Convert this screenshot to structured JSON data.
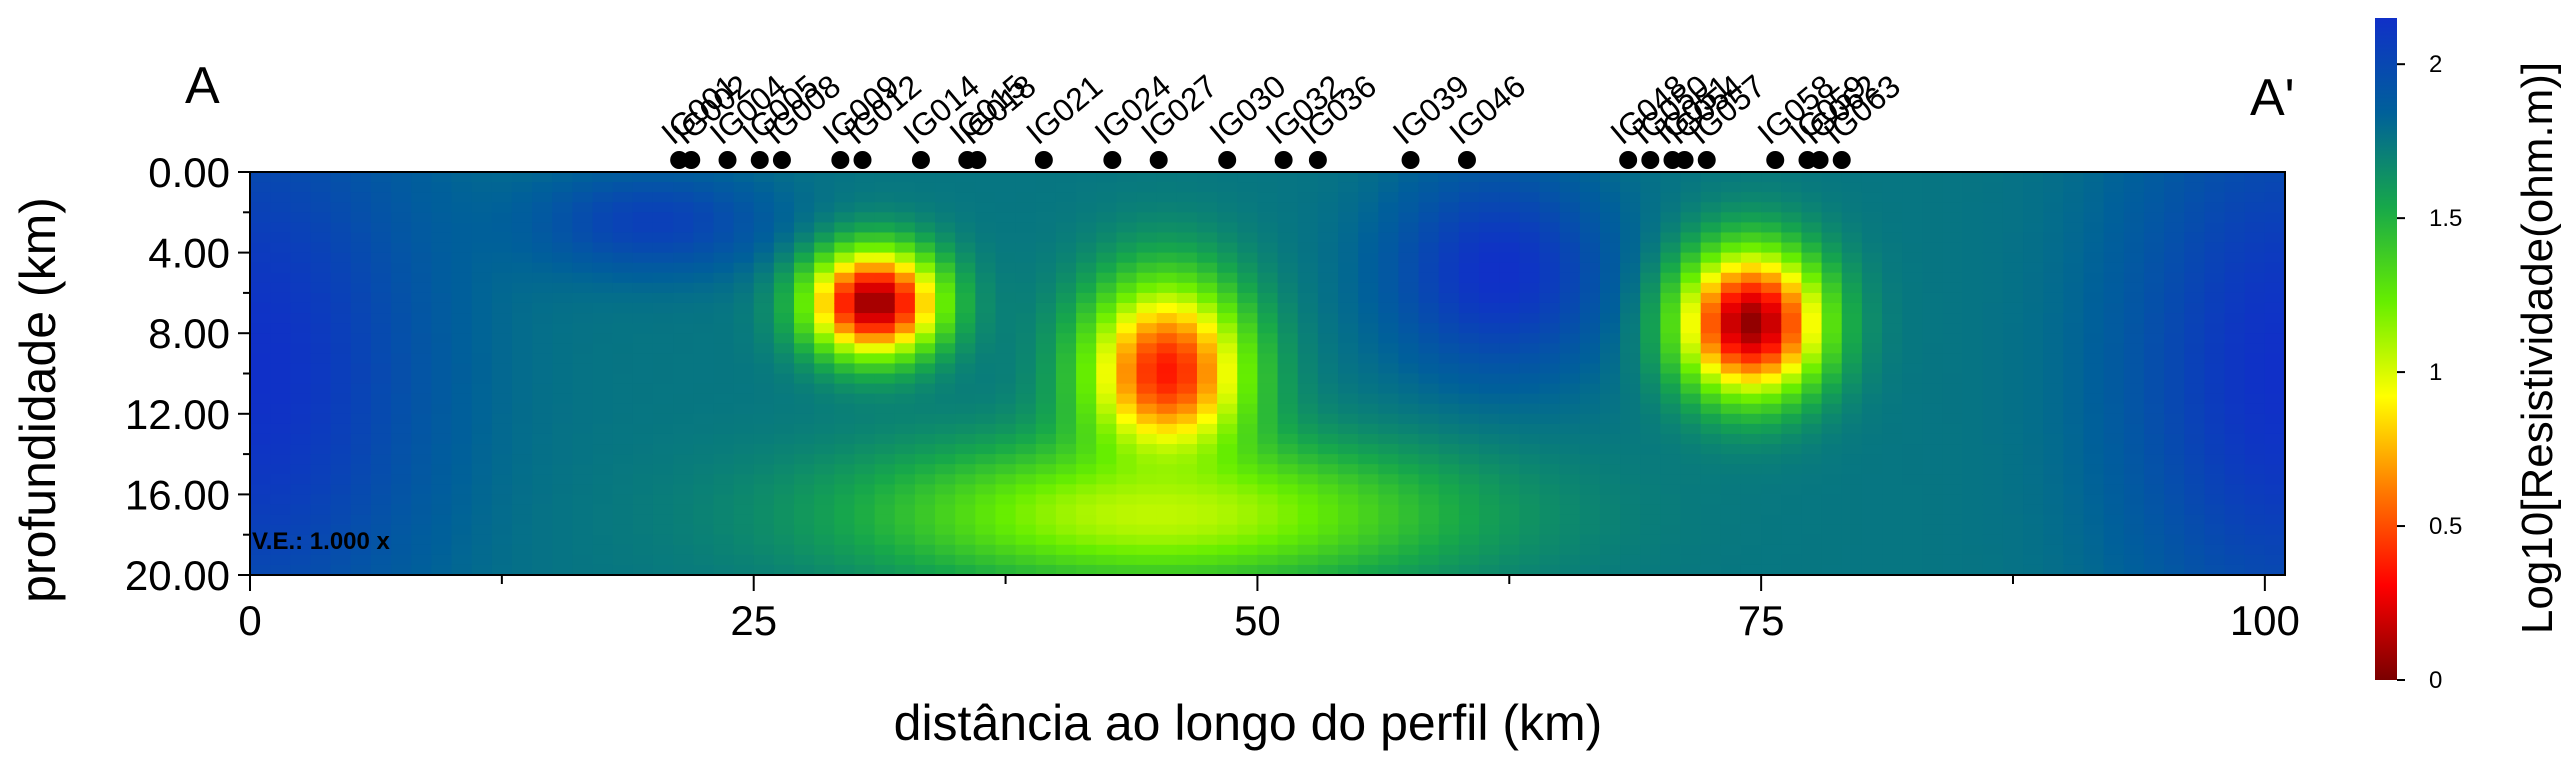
{
  "chart_data": {
    "type": "heatmap",
    "title": "",
    "section_labels": {
      "left": "A",
      "right": "A'"
    },
    "xlabel": "distância ao longo do perfil (km)",
    "ylabel": "profundidade (km)",
    "xlim": [
      0,
      101
    ],
    "ylim": [
      0,
      20
    ],
    "y_inverted": true,
    "x_ticks": [
      "0",
      "25",
      "50",
      "75",
      "100"
    ],
    "y_ticks": [
      "0.00",
      "4.00",
      "8.00",
      "12.00",
      "16.00",
      "20.00"
    ],
    "vertical_exaggeration": "V.E.: 1.000 x",
    "colorbar": {
      "label": "Log10[Resistividade(ohm.m)]",
      "range": [
        0,
        2.15
      ],
      "ticks": [
        "0",
        "0.5",
        "1",
        "1.5",
        "2"
      ],
      "colors": [
        "#7a0000",
        "#ff0000",
        "#ff7a00",
        "#ffff00",
        "#66ee00",
        "#17a84a",
        "#00609a",
        "#1030c8"
      ]
    },
    "stations": [
      {
        "name": "IG001",
        "x": 21.3
      },
      {
        "name": "IG002",
        "x": 21.9
      },
      {
        "name": "IG004",
        "x": 23.7
      },
      {
        "name": "IG005",
        "x": 25.3
      },
      {
        "name": "IG008",
        "x": 26.4
      },
      {
        "name": "IG009",
        "x": 29.3
      },
      {
        "name": "IG012",
        "x": 30.4
      },
      {
        "name": "IG014",
        "x": 33.3
      },
      {
        "name": "IG015",
        "x": 35.6
      },
      {
        "name": "IG018",
        "x": 36.1
      },
      {
        "name": "IG021",
        "x": 39.4
      },
      {
        "name": "IG024",
        "x": 42.8
      },
      {
        "name": "IG027",
        "x": 45.1
      },
      {
        "name": "IG030",
        "x": 48.5
      },
      {
        "name": "IG032",
        "x": 51.3
      },
      {
        "name": "IG036",
        "x": 53.0
      },
      {
        "name": "IG039",
        "x": 57.6
      },
      {
        "name": "IG046",
        "x": 60.4
      },
      {
        "name": "IG048",
        "x": 68.4
      },
      {
        "name": "IG050",
        "x": 69.5
      },
      {
        "name": "IG051",
        "x": 70.6
      },
      {
        "name": "IG054",
        "x": 71.2
      },
      {
        "name": "IG057",
        "x": 72.3
      },
      {
        "name": "IG058",
        "x": 75.7
      },
      {
        "name": "IG059",
        "x": 77.3
      },
      {
        "name": "IG062",
        "x": 77.9
      },
      {
        "name": "IG063",
        "x": 79.0
      }
    ],
    "resistivity_model": {
      "description": "log10 resistivity field; background value 1.75",
      "background": 1.75,
      "bodies": [
        {
          "name": "resistive-left-edge",
          "x": 0,
          "depth": 10,
          "sx": 9,
          "sz": 14,
          "value": 2.15
        },
        {
          "name": "resistive-upper-left",
          "x": 20,
          "depth": 2.5,
          "sx": 6,
          "sz": 2.5,
          "value": 2.05
        },
        {
          "name": "conductor-1",
          "x": 31,
          "depth": 6.5,
          "sx": 3.2,
          "sz": 2.6,
          "value": 0.05
        },
        {
          "name": "conductor-2",
          "x": 45.5,
          "depth": 10,
          "sx": 4,
          "sz": 4.5,
          "value": 0.35
        },
        {
          "name": "resistive-center",
          "x": 62,
          "depth": 5,
          "sx": 5.5,
          "sz": 5,
          "value": 2.15
        },
        {
          "name": "conductor-3",
          "x": 74.5,
          "depth": 7.5,
          "sx": 3.5,
          "sz": 3.5,
          "value": 0.05
        },
        {
          "name": "resistive-right-edge",
          "x": 101,
          "depth": 10,
          "sx": 8,
          "sz": 14,
          "value": 2.15
        },
        {
          "name": "moderate-base",
          "x": 45,
          "depth": 17,
          "sx": 14,
          "sz": 3.5,
          "value": 1.05
        }
      ]
    }
  }
}
